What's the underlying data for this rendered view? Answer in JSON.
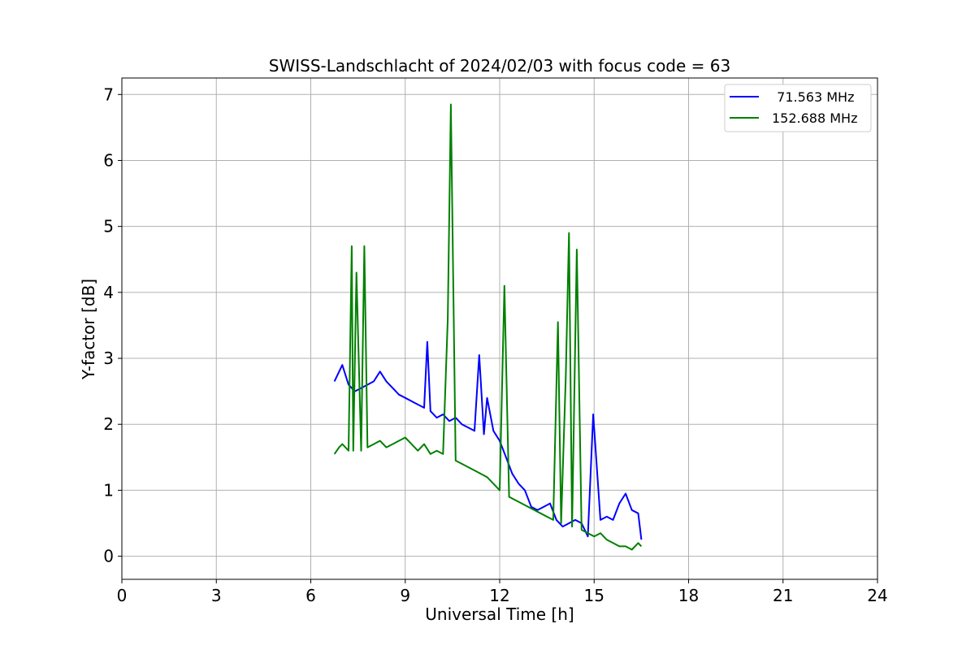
{
  "chart_data": {
    "type": "line",
    "title": "SWISS-Landschlacht of 2024/02/03 with focus code = 63",
    "xlabel": "Universal Time [h]",
    "ylabel": "Y-factor [dB]",
    "xlim": [
      0,
      24
    ],
    "ylim": [
      -0.35,
      7.25
    ],
    "xticks": [
      0,
      3,
      6,
      9,
      12,
      15,
      18,
      21,
      24
    ],
    "yticks": [
      0,
      1,
      2,
      3,
      4,
      5,
      6,
      7
    ],
    "grid": true,
    "legend_position": "top-right",
    "series": [
      {
        "name": "  71.563 MHz",
        "color": "#0000ff",
        "x": [
          6.75,
          6.9,
          7.0,
          7.2,
          7.4,
          7.6,
          7.8,
          8.0,
          8.2,
          8.4,
          8.6,
          8.8,
          9.0,
          9.2,
          9.4,
          9.6,
          9.7,
          9.8,
          10.0,
          10.2,
          10.4,
          10.6,
          10.8,
          11.0,
          11.2,
          11.35,
          11.5,
          11.6,
          11.8,
          12.0,
          12.2,
          12.4,
          12.6,
          12.8,
          13.0,
          13.2,
          13.4,
          13.6,
          13.8,
          14.0,
          14.2,
          14.4,
          14.6,
          14.8,
          14.97,
          15.2,
          15.4,
          15.6,
          15.8,
          16.0,
          16.2,
          16.4,
          16.5
        ],
        "y": [
          2.65,
          2.8,
          2.9,
          2.6,
          2.5,
          2.55,
          2.6,
          2.65,
          2.8,
          2.65,
          2.55,
          2.45,
          2.4,
          2.35,
          2.3,
          2.25,
          3.25,
          2.2,
          2.1,
          2.15,
          2.05,
          2.1,
          2.0,
          1.95,
          1.9,
          3.05,
          1.85,
          2.4,
          1.9,
          1.75,
          1.5,
          1.25,
          1.1,
          1.0,
          0.75,
          0.7,
          0.75,
          0.8,
          0.55,
          0.45,
          0.5,
          0.55,
          0.5,
          0.3,
          2.15,
          0.55,
          0.6,
          0.55,
          0.8,
          0.95,
          0.7,
          0.65,
          0.25
        ]
      },
      {
        "name": "152.688 MHz",
        "color": "#008000",
        "x": [
          6.75,
          6.9,
          7.0,
          7.2,
          7.3,
          7.35,
          7.45,
          7.6,
          7.7,
          7.8,
          8.0,
          8.2,
          8.4,
          8.6,
          8.8,
          9.0,
          9.2,
          9.4,
          9.6,
          9.8,
          10.0,
          10.2,
          10.35,
          10.45,
          10.6,
          10.8,
          11.0,
          11.2,
          11.4,
          11.6,
          11.8,
          12.0,
          12.15,
          12.3,
          12.5,
          12.7,
          12.9,
          13.1,
          13.3,
          13.5,
          13.7,
          13.85,
          13.95,
          14.1,
          14.2,
          14.3,
          14.45,
          14.6,
          14.8,
          15.0,
          15.2,
          15.4,
          15.6,
          15.8,
          16.0,
          16.2,
          16.4,
          16.5
        ],
        "y": [
          1.55,
          1.65,
          1.7,
          1.6,
          4.7,
          1.6,
          4.3,
          1.6,
          4.7,
          1.65,
          1.7,
          1.75,
          1.65,
          1.7,
          1.75,
          1.8,
          1.7,
          1.6,
          1.7,
          1.55,
          1.6,
          1.55,
          3.6,
          6.85,
          1.45,
          1.4,
          1.35,
          1.3,
          1.25,
          1.2,
          1.1,
          1.0,
          4.1,
          0.9,
          0.85,
          0.8,
          0.75,
          0.7,
          0.65,
          0.6,
          0.55,
          3.55,
          0.5,
          2.75,
          4.9,
          0.45,
          4.65,
          0.4,
          0.35,
          0.3,
          0.35,
          0.25,
          0.2,
          0.15,
          0.15,
          0.1,
          0.2,
          0.15
        ]
      }
    ]
  }
}
